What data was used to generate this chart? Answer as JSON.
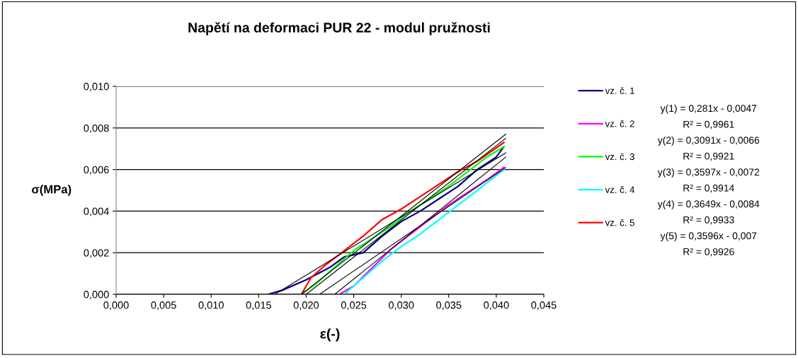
{
  "chart_data": {
    "type": "line",
    "title": "Napětí na deformaci PUR 22 - modul pružnosti",
    "xlabel": "ε(-)",
    "ylabel": "σ(MPa)",
    "xlim": [
      0,
      0.045
    ],
    "ylim": [
      0,
      0.01
    ],
    "xticks": [
      {
        "value": 0,
        "label": "0,000"
      },
      {
        "value": 0.005,
        "label": "0,005"
      },
      {
        "value": 0.01,
        "label": "0,010"
      },
      {
        "value": 0.015,
        "label": "0,015"
      },
      {
        "value": 0.02,
        "label": "0,020"
      },
      {
        "value": 0.025,
        "label": "0,025"
      },
      {
        "value": 0.03,
        "label": "0,030"
      },
      {
        "value": 0.035,
        "label": "0,035"
      },
      {
        "value": 0.04,
        "label": "0,040"
      },
      {
        "value": 0.045,
        "label": "0,045"
      }
    ],
    "yticks": [
      {
        "value": 0,
        "label": "0,000"
      },
      {
        "value": 0.002,
        "label": "0,002"
      },
      {
        "value": 0.004,
        "label": "0,004"
      },
      {
        "value": 0.006,
        "label": "0,006"
      },
      {
        "value": 0.008,
        "label": "0,008"
      },
      {
        "value": 0.01,
        "label": "0,010"
      }
    ],
    "grid": "y",
    "legend": "right",
    "line_style": "solid",
    "marker": "none",
    "series": [
      {
        "name": "vz. č. 1",
        "color": "#000080",
        "x": [
          0.016,
          0.0175,
          0.02,
          0.0225,
          0.024,
          0.026,
          0.028,
          0.03,
          0.032,
          0.034,
          0.036,
          0.038,
          0.04,
          0.0408
        ],
        "values": [
          0,
          0.0002,
          0.0007,
          0.0013,
          0.0018,
          0.002,
          0.0028,
          0.0035,
          0.004,
          0.0046,
          0.0052,
          0.006,
          0.0066,
          0.0071
        ]
      },
      {
        "name": "vz. č. 2",
        "color": "#ff00ff",
        "x": [
          0.0235,
          0.025,
          0.027,
          0.029,
          0.031,
          0.033,
          0.035,
          0.037,
          0.039,
          0.0408
        ],
        "values": [
          0,
          0.0004,
          0.0013,
          0.0022,
          0.0029,
          0.0036,
          0.0043,
          0.0049,
          0.0055,
          0.0061
        ]
      },
      {
        "name": "vz. č. 3",
        "color": "#00ff00",
        "x": [
          0.0195,
          0.021,
          0.023,
          0.025,
          0.027,
          0.029,
          0.031,
          0.033,
          0.035,
          0.037,
          0.039,
          0.0408
        ],
        "values": [
          0,
          0.0005,
          0.0013,
          0.0021,
          0.0027,
          0.0033,
          0.004,
          0.0046,
          0.0052,
          0.0059,
          0.0066,
          0.0071
        ]
      },
      {
        "name": "vz. č. 4",
        "color": "#00ffff",
        "x": [
          0.024,
          0.026,
          0.028,
          0.03,
          0.032,
          0.034,
          0.036,
          0.038,
          0.0408
        ],
        "values": [
          0,
          0.0008,
          0.0016,
          0.0023,
          0.0029,
          0.0036,
          0.0043,
          0.005,
          0.006
        ]
      },
      {
        "name": "vz. č. 5",
        "color": "#ff0000",
        "x": [
          0.0195,
          0.0205,
          0.022,
          0.024,
          0.026,
          0.028,
          0.03,
          0.032,
          0.034,
          0.036,
          0.038,
          0.0408
        ],
        "values": [
          0,
          0.0008,
          0.0014,
          0.0021,
          0.0028,
          0.0036,
          0.0041,
          0.0047,
          0.0053,
          0.0059,
          0.0064,
          0.0073
        ]
      },
      {
        "type": "line",
        "color": "#000000",
        "x": [
          0.0167,
          0.041
        ],
        "values": [
          0,
          0.0068
        ]
      },
      {
        "type": "line",
        "color": "#000000",
        "x": [
          0.0214,
          0.041
        ],
        "values": [
          0,
          0.0061
        ]
      },
      {
        "type": "line",
        "color": "#000000",
        "x": [
          0.02,
          0.041
        ],
        "values": [
          0,
          0.0075
        ]
      },
      {
        "type": "line",
        "color": "#000000",
        "x": [
          0.023,
          0.041
        ],
        "values": [
          0,
          0.0066
        ]
      },
      {
        "type": "line",
        "color": "#000000",
        "x": [
          0.0195,
          0.041
        ],
        "values": [
          0,
          0.0077
        ]
      }
    ],
    "annotations": [
      "y(1) = 0,281x - 0,0047",
      "R² = 0,9961",
      "y(2) = 0,3091x - 0,0066",
      "R² = 0,9921",
      "y(3) = 0,3597x - 0,0072",
      "R² = 0,9914",
      "y(4) = 0,3649x - 0,0084",
      "R² = 0,9933",
      "y(5) = 0,3596x - 0,007",
      "R² = 0,9926"
    ]
  }
}
